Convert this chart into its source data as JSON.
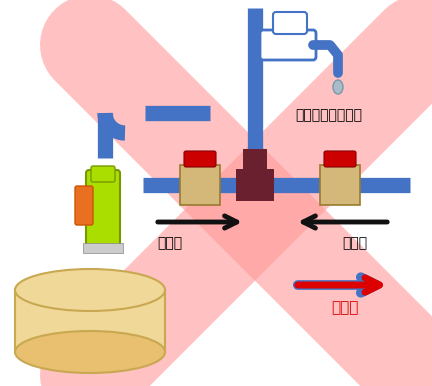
{
  "bg_color": "#ffffff",
  "pipe_color": "#4472c4",
  "valve_body_color": "#d4b87a",
  "valve_handle_color": "#cc0000",
  "junction_color": "#6b2030",
  "well_pump_color": "#aadd00",
  "well_pump_accent": "#e87020",
  "well_base_color": "#f0d898",
  "well_base_edge": "#c8a850",
  "cross_color": "#ff9999",
  "cross_alpha": 0.6,
  "labels": {
    "faucet_label": "水道水？井戸水？",
    "left_label": "井戸水",
    "right_label": "水道水",
    "bottom_label": "井戸水"
  },
  "arrow_dark_color": "#111111",
  "arrow_red_color": "#dd0000",
  "arrow_blue_color": "#4472c4",
  "pipe_lw": 11,
  "cross_lw": 72
}
